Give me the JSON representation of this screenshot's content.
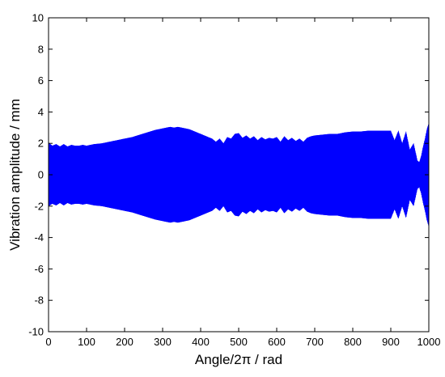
{
  "chart_data": {
    "type": "line",
    "xlabel": "Angle/2π / rad",
    "ylabel": "Vibration amplitude / mm",
    "xlim": [
      0,
      1000
    ],
    "ylim": [
      -10,
      10
    ],
    "xticks": [
      0,
      100,
      200,
      300,
      400,
      500,
      600,
      700,
      800,
      900,
      1000
    ],
    "yticks": [
      10,
      8,
      6,
      4,
      2,
      0,
      -2,
      -4,
      -6,
      -8,
      -10
    ],
    "grid": false,
    "color": "#0000ff",
    "series": [
      {
        "envelope": {
          "x": [
            0,
            10,
            20,
            30,
            40,
            50,
            60,
            70,
            80,
            90,
            100,
            120,
            140,
            160,
            180,
            200,
            220,
            240,
            260,
            280,
            300,
            310,
            320,
            330,
            340,
            350,
            360,
            370,
            380,
            390,
            400,
            410,
            420,
            430,
            440,
            450,
            460,
            470,
            480,
            490,
            500,
            510,
            520,
            530,
            540,
            550,
            560,
            570,
            580,
            590,
            600,
            610,
            620,
            630,
            640,
            650,
            660,
            670,
            680,
            690,
            700,
            720,
            740,
            760,
            780,
            800,
            820,
            840,
            860,
            880,
            900,
            910,
            920,
            930,
            940,
            950,
            960,
            970,
            975,
            980,
            985,
            990,
            995,
            1000
          ],
          "upper": [
            2.05,
            1.85,
            1.95,
            1.8,
            1.95,
            1.8,
            1.9,
            1.85,
            1.85,
            1.9,
            1.85,
            1.95,
            2.0,
            2.1,
            2.2,
            2.3,
            2.4,
            2.55,
            2.7,
            2.85,
            2.95,
            3.0,
            3.05,
            3.0,
            3.05,
            3.0,
            2.95,
            2.9,
            2.8,
            2.7,
            2.6,
            2.5,
            2.4,
            2.3,
            2.1,
            2.3,
            2.0,
            2.4,
            2.3,
            2.6,
            2.65,
            2.35,
            2.5,
            2.3,
            2.45,
            2.2,
            2.4,
            2.25,
            2.35,
            2.3,
            2.4,
            2.1,
            2.45,
            2.2,
            2.35,
            2.15,
            2.3,
            2.1,
            2.35,
            2.45,
            2.5,
            2.55,
            2.6,
            2.6,
            2.7,
            2.75,
            2.75,
            2.8,
            2.8,
            2.8,
            2.8,
            2.2,
            2.8,
            2.0,
            2.75,
            1.6,
            2.0,
            0.9,
            0.8,
            1.2,
            1.8,
            2.3,
            2.9,
            3.3
          ],
          "lower": [
            -2.0,
            -1.85,
            -1.95,
            -1.8,
            -1.95,
            -1.8,
            -1.9,
            -1.85,
            -1.85,
            -1.9,
            -1.85,
            -1.95,
            -2.0,
            -2.1,
            -2.2,
            -2.3,
            -2.4,
            -2.55,
            -2.7,
            -2.85,
            -2.95,
            -3.0,
            -3.05,
            -3.0,
            -3.05,
            -3.0,
            -2.95,
            -2.9,
            -2.8,
            -2.7,
            -2.6,
            -2.5,
            -2.4,
            -2.3,
            -2.1,
            -2.3,
            -2.0,
            -2.4,
            -2.3,
            -2.6,
            -2.65,
            -2.35,
            -2.5,
            -2.3,
            -2.45,
            -2.2,
            -2.4,
            -2.25,
            -2.35,
            -2.3,
            -2.4,
            -2.1,
            -2.45,
            -2.2,
            -2.35,
            -2.15,
            -2.3,
            -2.1,
            -2.35,
            -2.45,
            -2.5,
            -2.55,
            -2.6,
            -2.6,
            -2.7,
            -2.75,
            -2.75,
            -2.8,
            -2.8,
            -2.8,
            -2.8,
            -2.2,
            -2.8,
            -2.0,
            -2.75,
            -1.6,
            -2.0,
            -0.9,
            -0.8,
            -1.2,
            -1.8,
            -2.3,
            -2.9,
            -3.3
          ]
        }
      }
    ]
  }
}
